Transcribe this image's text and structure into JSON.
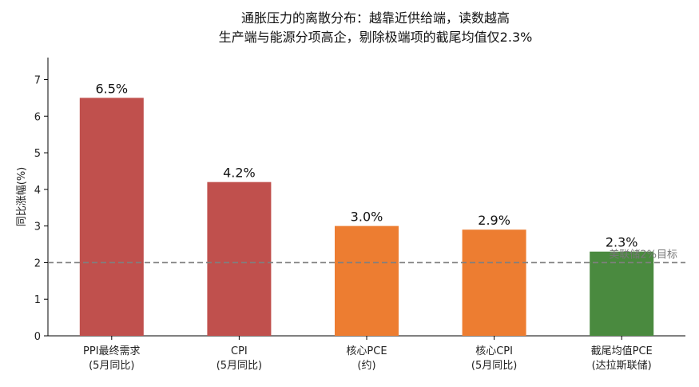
{
  "chart_data": {
    "type": "bar",
    "title_lines": [
      "通胀压力的离散分布：越靠近供给端，读数越高",
      "生产端与能源分项高企，剔除极端项的截尾均值仅2.3%"
    ],
    "xlabel": "",
    "ylabel": "同比涨幅(%)",
    "ylim": [
      0,
      7.6
    ],
    "yticks": [
      "0",
      "1",
      "2",
      "3",
      "4",
      "5",
      "6",
      "7"
    ],
    "categories": [
      [
        "PPI最终需求",
        "(5月同比)"
      ],
      [
        "CPI",
        "(5月同比)"
      ],
      [
        "核心PCE",
        "(约)"
      ],
      [
        "核心CPI",
        "(5月同比)"
      ],
      [
        "截尾均值PCE",
        "(达拉斯联储)"
      ]
    ],
    "values": [
      6.5,
      4.2,
      3.0,
      2.9,
      2.3
    ],
    "value_labels": [
      "6.5%",
      "4.2%",
      "3.0%",
      "2.9%",
      "2.3%"
    ],
    "colors": [
      "#c0504d",
      "#c0504d",
      "#ed7d31",
      "#ed7d31",
      "#4a8a3f"
    ],
    "reference_line": {
      "value": 2.0,
      "label": "美联储2%目标",
      "color": "#7f7f7f"
    },
    "grid": false
  }
}
